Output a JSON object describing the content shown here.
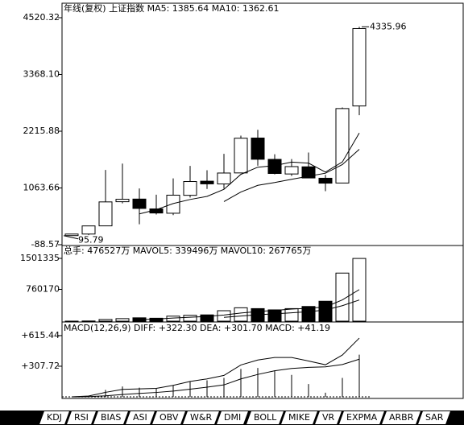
{
  "chart_data": [
    {
      "type": "candlestick",
      "title": "年线(复权)  上证指数 MA5: 1385.64 MA10: 1362.61",
      "open": [
        96.05,
        127.61,
        293.74,
        784.13,
        837.7,
        637.72,
        550.26,
        914.06,
        1200.95,
        1144.89,
        1368.69,
        2077.08,
        1643.48,
        1347.43,
        1492.72,
        1260.78,
        1163.88,
        2728.19
      ],
      "high": [
        127.61,
        292.75,
        1429.01,
        1558.95,
        1052.94,
        926.41,
        1258.69,
        1510.18,
        1422.98,
        1756.18,
        2125.72,
        2245.43,
        1748.89,
        1649.6,
        1783.01,
        1328.53,
        2698.9,
        4335.96
      ],
      "low": [
        95.79,
        104.96,
        292.76,
        750.46,
        325.89,
        524.43,
        512.83,
        870.18,
        1043.02,
        1047.83,
        1361.21,
        1514.86,
        1339.2,
        1307.4,
        1259.43,
        998.23,
        1161.91,
        2541.52
      ],
      "close": [
        127.61,
        292.75,
        780.39,
        833.8,
        647.87,
        555.29,
        917.02,
        1194.1,
        1146.7,
        1366.58,
        2073.47,
        1645.97,
        1357.65,
        1497.04,
        1266.5,
        1161.06,
        2675.47,
        4300
      ],
      "series": [
        {
          "color": "#000000",
          "values": [
            null,
            null,
            null,
            null,
            536.48,
            622.02,
            746.87,
            829.62,
            892.2,
            1035.94,
            1339.57,
            1485.36,
            1518.07,
            1588.14,
            1568.13,
            1385.64,
            1591.54,
            2180.01
          ]
        },
        {
          "color": "#000000",
          "values": [
            null,
            null,
            null,
            null,
            null,
            null,
            null,
            null,
            null,
            786.21,
            980.8,
            1116.12,
            1173.85,
            1240.17,
            1302.03,
            1362.61,
            1538.45,
            1849.04
          ]
        }
      ],
      "ylim": [
        -88.57,
        4749
      ],
      "yticks": [
        4520.32,
        {
          "value": 3368.1,
          "label": "3368.10"
        },
        2215.88,
        1063.66,
        -88.57
      ]
    },
    {
      "type": "bar",
      "title": "总手: 476527万 MAVOL5: 339496万 MAVOL10: 267765万",
      "values": [
        500,
        4000,
        40000,
        60000,
        80000,
        70000,
        120000,
        140000,
        150000,
        250000,
        320170,
        300000,
        270000,
        300000,
        350953,
        476527,
        1150000,
        1500000
      ],
      "series": [
        {
          "color": "#000000",
          "values": [
            null,
            null,
            null,
            null,
            36900,
            50800,
            74000,
            94000,
            112000,
            146000,
            196034,
            232034,
            258034,
            288034,
            308225,
            339496,
            509496,
            755496
          ]
        },
        {
          "color": "#000000",
          "values": [
            null,
            null,
            null,
            null,
            null,
            null,
            null,
            null,
            null,
            91450,
            123417,
            153017,
            176017,
            200017,
            227112,
            267765,
            370765,
            506765
          ]
        }
      ],
      "ylim": [
        0,
        1540000
      ],
      "yticks": [
        1501335,
        760170
      ]
    },
    {
      "type": "macd",
      "title": "MACD(12,26,9) DIFF: +322.30 DEA: +301.70 MACD: +41.19",
      "diff": [
        0,
        8,
        45,
        75,
        80,
        85,
        115,
        155,
        180,
        215,
        320,
        370,
        395,
        395,
        360,
        322.3,
        420,
        590
      ],
      "dea": [
        0,
        2,
        10,
        23,
        34,
        44,
        58,
        77,
        97,
        120,
        180,
        225,
        262,
        285,
        296,
        301.7,
        325,
        378
      ],
      "macd": [
        0,
        12,
        70,
        104,
        92,
        82,
        114,
        156,
        166,
        190,
        280,
        290,
        266,
        220,
        128,
        41.19,
        190,
        424
      ],
      "ylim": [
        0,
        712
      ],
      "yticks": [
        {
          "value": 615.44,
          "label": "+615.44"
        },
        {
          "value": 307.72,
          "label": "+307.72"
        }
      ]
    }
  ],
  "tabs": [
    "KDJ",
    "RSI",
    "BIAS",
    "ASI",
    "OBV",
    "W&R",
    "DMI",
    "BOLL",
    "MIKE",
    "VR",
    "EXPMA",
    "ARBR",
    "SAR"
  ]
}
